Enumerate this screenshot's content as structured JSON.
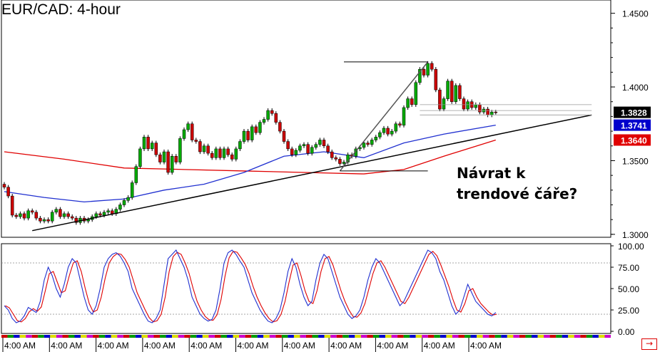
{
  "chart_data": {
    "type": "candlestick",
    "title": "EUR/CAD: 4-hour",
    "annotation": [
      "Návrat k",
      "trendové čáře?"
    ],
    "price_axis": {
      "ylim": [
        1.298,
        1.459
      ],
      "ticks": [
        "1.4500",
        "1.4000",
        "1.3500",
        "1.3000"
      ]
    },
    "price_labels": [
      {
        "label": "1.3828",
        "value": 1.3828,
        "color": "#000000"
      },
      {
        "label": "1.3741",
        "value": 1.3741,
        "color": "#0000cc"
      },
      {
        "label": "1.3640",
        "value": 1.364,
        "color": "#e00000"
      }
    ],
    "candles_close": [
      1.332,
      1.326,
      1.313,
      1.312,
      1.314,
      1.311,
      1.316,
      1.315,
      1.311,
      1.309,
      1.31,
      1.309,
      1.315,
      1.317,
      1.312,
      1.314,
      1.312,
      1.311,
      1.308,
      1.311,
      1.309,
      1.31,
      1.312,
      1.314,
      1.313,
      1.315,
      1.316,
      1.314,
      1.317,
      1.32,
      1.323,
      1.325,
      1.335,
      1.346,
      1.358,
      1.366,
      1.358,
      1.362,
      1.354,
      1.349,
      1.356,
      1.342,
      1.353,
      1.349,
      1.365,
      1.371,
      1.375,
      1.364,
      1.363,
      1.356,
      1.36,
      1.355,
      1.352,
      1.358,
      1.352,
      1.358,
      1.354,
      1.351,
      1.358,
      1.363,
      1.37,
      1.364,
      1.373,
      1.369,
      1.376,
      1.378,
      1.384,
      1.382,
      1.376,
      1.37,
      1.363,
      1.358,
      1.354,
      1.357,
      1.36,
      1.361,
      1.355,
      1.359,
      1.361,
      1.364,
      1.36,
      1.356,
      1.352,
      1.351,
      1.348,
      1.349,
      1.354,
      1.353,
      1.358,
      1.359,
      1.362,
      1.361,
      1.364,
      1.366,
      1.369,
      1.372,
      1.368,
      1.37,
      1.375,
      1.374,
      1.386,
      1.392,
      1.388,
      1.403,
      1.412,
      1.408,
      1.416,
      1.412,
      1.398,
      1.385,
      1.392,
      1.404,
      1.39,
      1.401,
      1.392,
      1.385,
      1.39,
      1.386,
      1.388,
      1.383,
      1.385,
      1.381,
      1.383,
      1.3828
    ],
    "ema_blue": {
      "x": [
        0,
        10,
        20,
        30,
        40,
        50,
        60,
        70,
        80,
        90,
        100,
        110,
        123
      ],
      "values": [
        1.329,
        1.325,
        1.322,
        1.324,
        1.33,
        1.334,
        1.342,
        1.353,
        1.356,
        1.352,
        1.362,
        1.368,
        1.3741
      ]
    },
    "ema_red": {
      "x": [
        0,
        15,
        30,
        45,
        60,
        75,
        90,
        100,
        110,
        123
      ],
      "values": [
        1.356,
        1.351,
        1.345,
        1.344,
        1.343,
        1.342,
        1.341,
        1.344,
        1.353,
        1.364
      ]
    },
    "stochastic": {
      "ylim": [
        0,
        100
      ],
      "ticks": [
        "100.00",
        "75.00",
        "50.00",
        "25.00",
        "0.00"
      ],
      "levels": [
        80,
        20
      ],
      "k": [
        30,
        25,
        15,
        10,
        12,
        18,
        28,
        25,
        22,
        35,
        60,
        75,
        65,
        50,
        40,
        55,
        75,
        85,
        80,
        60,
        40,
        25,
        20,
        30,
        50,
        75,
        85,
        90,
        92,
        88,
        80,
        70,
        50,
        40,
        30,
        20,
        12,
        10,
        15,
        25,
        55,
        85,
        90,
        95,
        85,
        75,
        60,
        40,
        30,
        20,
        15,
        12,
        14,
        25,
        50,
        80,
        92,
        95,
        90,
        82,
        75,
        60,
        45,
        35,
        25,
        18,
        12,
        10,
        15,
        25,
        45,
        70,
        85,
        75,
        55,
        40,
        30,
        35,
        60,
        80,
        90,
        85,
        70,
        55,
        40,
        30,
        20,
        15,
        18,
        25,
        40,
        60,
        75,
        85,
        80,
        70,
        60,
        50,
        40,
        30,
        35,
        45,
        55,
        65,
        75,
        85,
        95,
        92,
        85,
        70,
        60,
        45,
        30,
        20,
        25,
        40,
        55,
        45,
        35,
        30,
        25,
        20,
        18,
        22
      ]
    },
    "x_ticks": [
      "4:00 AM",
      "4:00 AM",
      "4:00 AM",
      "4:00 AM",
      "4:00 AM",
      "4:00 AM",
      "4:00 AM",
      "4:00 AM",
      "4:00 AM",
      "4:00 AM",
      "4:00 AM"
    ],
    "day_colors": [
      "#cc0000",
      "#009900",
      "#0000cc",
      "#dddd00",
      "#cc00cc"
    ]
  },
  "nav": {
    "end_label": "→"
  }
}
